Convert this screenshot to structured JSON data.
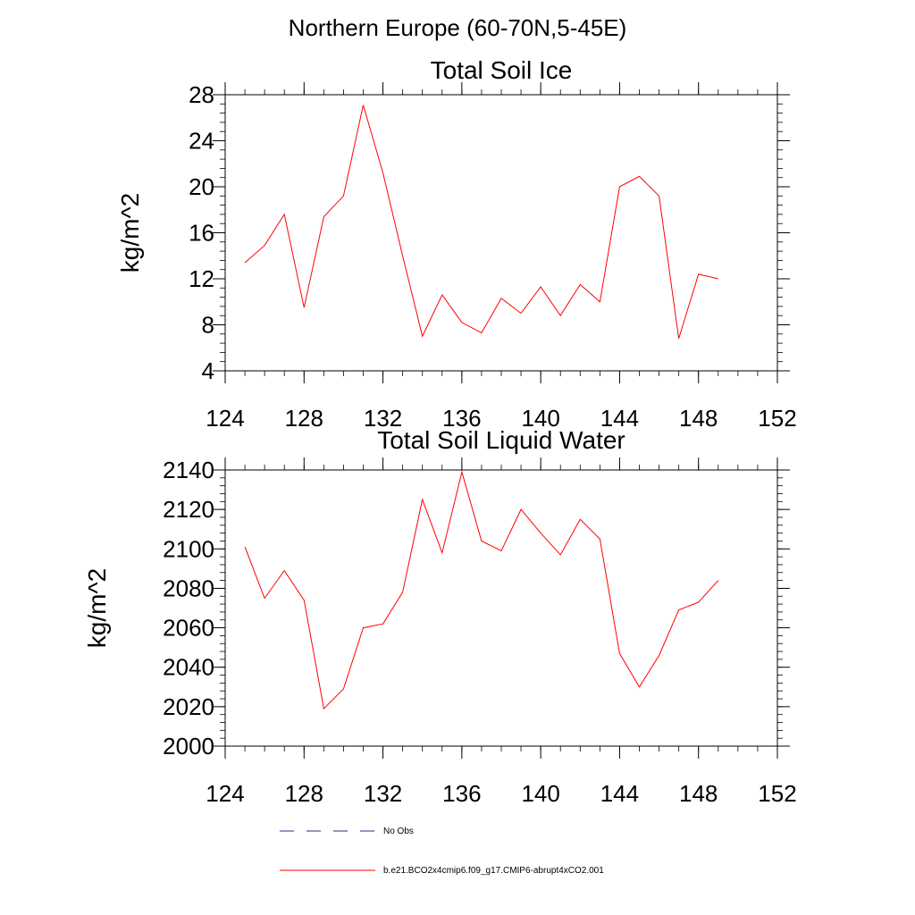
{
  "figure_title": "Northern Europe (60-70N,5-45E)",
  "chart_data": [
    {
      "type": "line",
      "title": "Total Soil Ice",
      "xlabel": "",
      "ylabel": "kg/m^2",
      "xlim": [
        124,
        152
      ],
      "ylim": [
        4,
        28
      ],
      "xticks": [
        124,
        128,
        132,
        136,
        140,
        144,
        148,
        152
      ],
      "yticks": [
        4,
        8,
        12,
        16,
        20,
        24,
        28
      ],
      "grid": false,
      "color": "#ff0000",
      "series": [
        {
          "name": "b.e21.BCO2x4cmip6.f09_g17.CMIP6-abrupt4xCO2.001",
          "x": [
            125,
            126,
            127,
            128,
            129,
            130,
            131,
            132,
            133,
            134,
            135,
            136,
            137,
            138,
            139,
            140,
            141,
            142,
            143,
            144,
            145,
            146,
            147,
            148,
            149
          ],
          "values": [
            13.4,
            14.9,
            17.6,
            9.5,
            17.4,
            19.2,
            27.1,
            21.2,
            14.0,
            7.0,
            10.6,
            8.2,
            7.3,
            10.3,
            9.0,
            11.3,
            8.8,
            11.5,
            10.0,
            20.0,
            20.9,
            19.2,
            6.8,
            12.4,
            12.0
          ]
        }
      ]
    },
    {
      "type": "line",
      "title": "Total Soil Liquid Water",
      "xlabel": "",
      "ylabel": "kg/m^2",
      "xlim": [
        124,
        152
      ],
      "ylim": [
        2000,
        2140
      ],
      "xticks": [
        124,
        128,
        132,
        136,
        140,
        144,
        148,
        152
      ],
      "yticks": [
        2000,
        2020,
        2040,
        2060,
        2080,
        2100,
        2120,
        2140
      ],
      "grid": false,
      "color": "#ff0000",
      "series": [
        {
          "name": "b.e21.BCO2x4cmip6.f09_g17.CMIP6-abrupt4xCO2.001",
          "x": [
            125,
            126,
            127,
            128,
            129,
            130,
            131,
            132,
            133,
            134,
            135,
            136,
            137,
            138,
            139,
            140,
            141,
            142,
            143,
            144,
            145,
            146,
            147,
            148,
            149
          ],
          "values": [
            2101,
            2075,
            2089,
            2074,
            2019,
            2029,
            2060,
            2062,
            2078,
            2125,
            2098,
            2139,
            2104,
            2099,
            2120,
            2108,
            2097,
            2115,
            2105,
            2047,
            2030,
            2046,
            2069,
            2073,
            2084
          ]
        }
      ]
    }
  ],
  "legend": {
    "entries": [
      {
        "label": "No Obs",
        "color": "#2a2a80",
        "style": "dashed"
      },
      {
        "label": "b.e21.BCO2x4cmip6.f09_g17.CMIP6-abrupt4xCO2.001",
        "color": "#ff0000",
        "style": "solid"
      }
    ]
  }
}
